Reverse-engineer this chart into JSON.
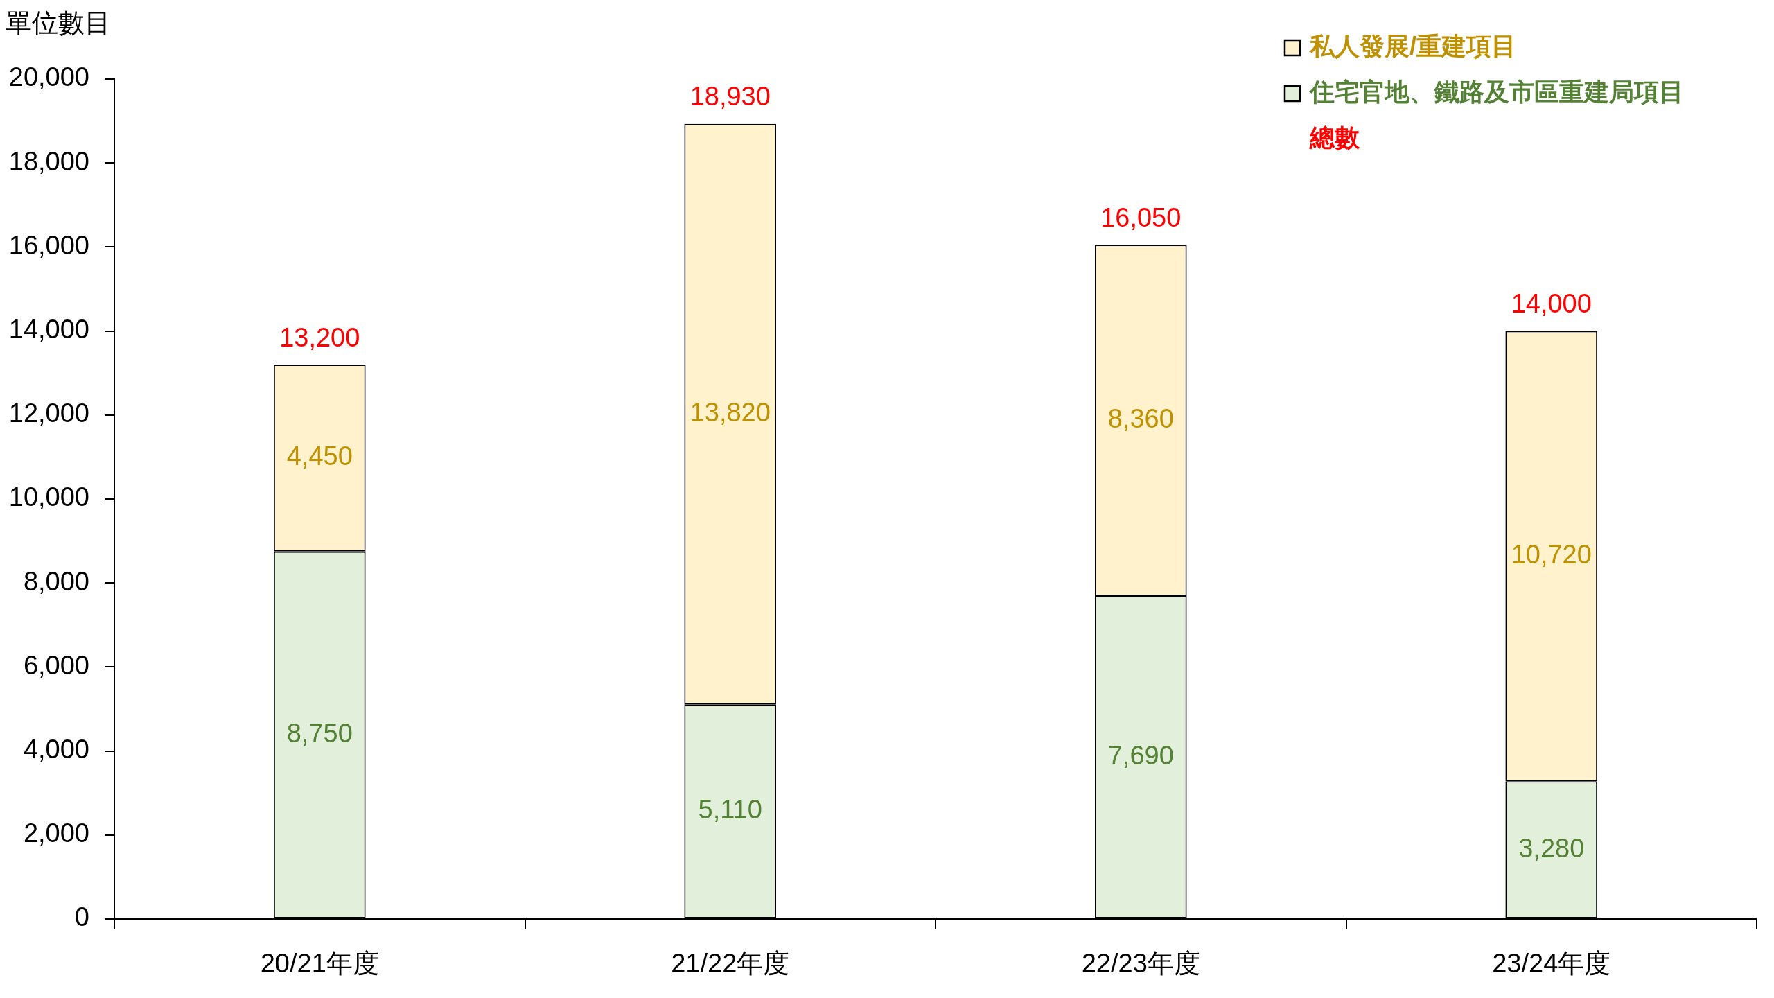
{
  "chart_data": {
    "type": "bar",
    "ylabel": "單位數目",
    "categories": [
      "20/21年度",
      "21/22年度",
      "22/23年度",
      "23/24年度"
    ],
    "series": [
      {
        "name": "住宅官地、鐵路及市區重建局項目",
        "color": "#e2efda",
        "values": [
          8750,
          5110,
          7690,
          3280
        ],
        "value_labels": [
          "8,750",
          "5,110",
          "7,690",
          "3,280"
        ]
      },
      {
        "name": "私人發展/重建項目",
        "color": "#fff2cc",
        "values": [
          4450,
          13820,
          8360,
          10720
        ],
        "value_labels": [
          "4,450",
          "13,820",
          "8,360",
          "10,720"
        ]
      }
    ],
    "stacked": true,
    "ylim": [
      0,
      20000
    ],
    "yticks": [
      0,
      {
        "value": 2000,
        "label": "2,000"
      },
      {
        "value": 4000,
        "label": "4,000"
      },
      {
        "value": 6000,
        "label": "6,000"
      },
      {
        "value": 8000,
        "label": "8,000"
      },
      {
        "value": 10000,
        "label": "10,000"
      },
      {
        "value": 12000,
        "label": "12,000"
      },
      {
        "value": 14000,
        "label": "14,000"
      },
      {
        "value": 16000,
        "label": "16,000"
      },
      {
        "value": 18000,
        "label": "18,000"
      },
      {
        "value": 20000,
        "label": "20,000"
      }
    ],
    "totals": [
      "13,200",
      "18,930",
      "16,050",
      "14,000"
    ],
    "legend": "top right",
    "annotations": [
      "總數"
    ]
  }
}
